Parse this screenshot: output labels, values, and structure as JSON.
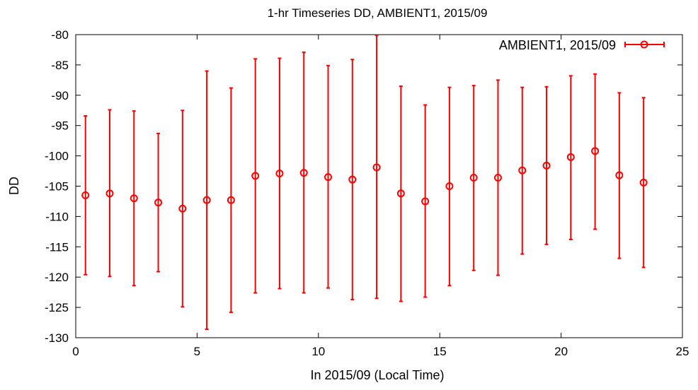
{
  "chart_data": {
    "type": "scatter",
    "title": "1-hr Timeseries DD, AMBIENT1, 2015/09",
    "xlabel": "In 2015/09 (Local Time)",
    "ylabel": "DD",
    "xlim": [
      0,
      25
    ],
    "ylim": [
      -130,
      -80
    ],
    "xticks": [
      0,
      5,
      10,
      15,
      20,
      25
    ],
    "yticks": [
      -80,
      -85,
      -90,
      -95,
      -100,
      -105,
      -110,
      -115,
      -120,
      -125,
      -130
    ],
    "legend_position": "top-right",
    "series_color": "#ff0000",
    "series": [
      {
        "name": "AMBIENT1, 2015/09",
        "x": [
          0.4,
          1.4,
          2.4,
          3.4,
          4.4,
          5.4,
          6.4,
          7.4,
          8.4,
          9.4,
          10.4,
          11.4,
          12.4,
          13.4,
          14.4,
          15.4,
          16.4,
          17.4,
          18.4,
          19.4,
          20.4,
          21.4,
          22.4,
          23.4
        ],
        "y": [
          -106.5,
          -106.2,
          -107.0,
          -107.7,
          -108.7,
          -107.3,
          -107.3,
          -103.3,
          -102.9,
          -102.8,
          -103.5,
          -103.9,
          -101.9,
          -106.2,
          -107.5,
          -105.0,
          -103.6,
          -103.6,
          -102.4,
          -101.6,
          -100.2,
          -99.2,
          -103.2,
          -104.4
        ],
        "y_low": [
          -119.6,
          -119.9,
          -121.4,
          -119.1,
          -124.9,
          -128.6,
          -125.8,
          -122.6,
          -121.9,
          -122.6,
          -121.8,
          -123.7,
          -123.5,
          -124.0,
          -123.3,
          -121.4,
          -118.9,
          -119.7,
          -116.2,
          -114.6,
          -113.8,
          -112.1,
          -116.9,
          -118.4
        ],
        "y_high": [
          -93.4,
          -92.4,
          -92.6,
          -96.3,
          -92.5,
          -86.0,
          -88.8,
          -84.0,
          -83.9,
          -82.9,
          -85.1,
          -84.1,
          -80.1,
          -88.5,
          -91.6,
          -88.7,
          -88.4,
          -87.5,
          -88.7,
          -88.6,
          -86.8,
          -86.5,
          -89.6,
          -90.4
        ]
      }
    ]
  }
}
